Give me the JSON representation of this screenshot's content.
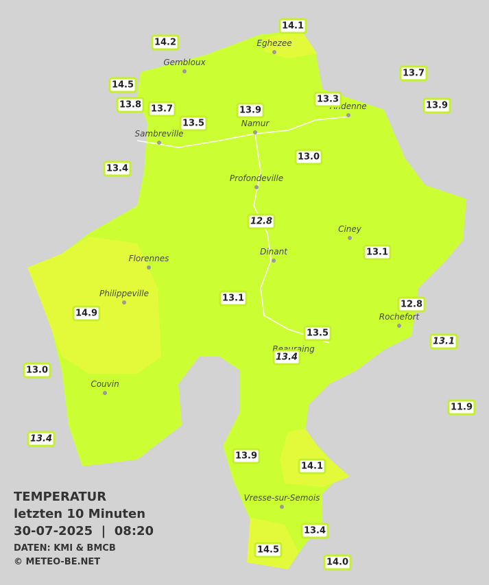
{
  "title": {
    "line1": "TEMPERATUR",
    "line2": "letzten 10 Minuten",
    "line3": "30-07-2025  |  08:20",
    "source": "DATEN: KMI & BMCB",
    "copyright": "© METEO-BE.NET"
  },
  "cities": [
    "Eghezee",
    "Gembloux",
    "Andenne",
    "Namur",
    "Sambreville",
    "Profondeville",
    "Ciney",
    "Dinant",
    "Florennes",
    "Philippeville",
    "Rochefort",
    "Beauraing",
    "Couvin",
    "Vresse-sur-Semois"
  ],
  "stations": [
    {
      "label": "14.1"
    },
    {
      "label": "14.2"
    },
    {
      "label": "14.5"
    },
    {
      "label": "13.8"
    },
    {
      "label": "13.7"
    },
    {
      "label": "13.5"
    },
    {
      "label": "13.9"
    },
    {
      "label": "13.3"
    },
    {
      "label": "13.7"
    },
    {
      "label": "13.9"
    },
    {
      "label": "13.4"
    },
    {
      "label": "13.0"
    },
    {
      "label": "12.8",
      "italic": true
    },
    {
      "label": "13.1"
    },
    {
      "label": "13.1"
    },
    {
      "label": "14.9"
    },
    {
      "label": "12.8"
    },
    {
      "label": "13.5"
    },
    {
      "label": "13.1",
      "italic": true
    },
    {
      "label": "13.4",
      "italic": true
    },
    {
      "label": "13.0"
    },
    {
      "label": "11.9"
    },
    {
      "label": "13.4",
      "italic": true
    },
    {
      "label": "13.9"
    },
    {
      "label": "14.1"
    },
    {
      "label": "13.4"
    },
    {
      "label": "14.5"
    },
    {
      "label": "14.0"
    }
  ]
}
